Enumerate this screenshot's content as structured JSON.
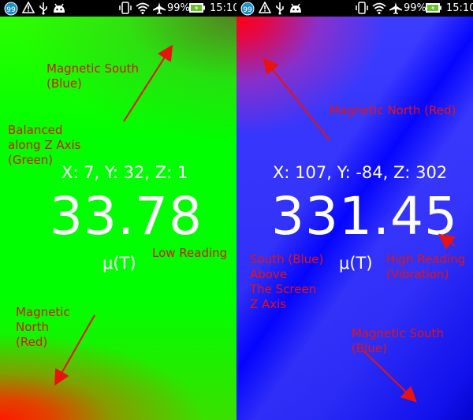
{
  "status_bar": {
    "badge": "99",
    "battery_percent": "99%",
    "time": "15:10"
  },
  "left_screen": {
    "xyz": "X: 7, Y: 32, Z: 1",
    "reading": "33.78",
    "unit": "μ(T)",
    "annotations": {
      "magnetic_south": "Magnetic South\n(Blue)",
      "balanced": "Balanced\nalong Z Axis\n(Green)",
      "low_reading": "Low Reading",
      "magnetic_north": "Magnetic\nNorth\n(Red)"
    }
  },
  "right_screen": {
    "xyz": "X: 107, Y: -84, Z: 302",
    "reading": "331.45",
    "unit": "μ(T)",
    "annotations": {
      "magnetic_north": "Magnetic North (Red)",
      "south_above": "South (Blue)\nAbove\nThe Screen\n Z Axis",
      "high_reading": "High Reading\n(Vibration)",
      "magnetic_south": "Magnetic South\n      (Blue)"
    }
  },
  "colors": {
    "annotation_text": "#d4180a",
    "arrow": "#e8120f",
    "status_background": "#000000"
  },
  "icons": [
    "badge-icon",
    "warning-icon",
    "usb-icon",
    "android-icon",
    "vibrate-icon",
    "wifi-icon",
    "airplane-icon",
    "battery-icon"
  ]
}
